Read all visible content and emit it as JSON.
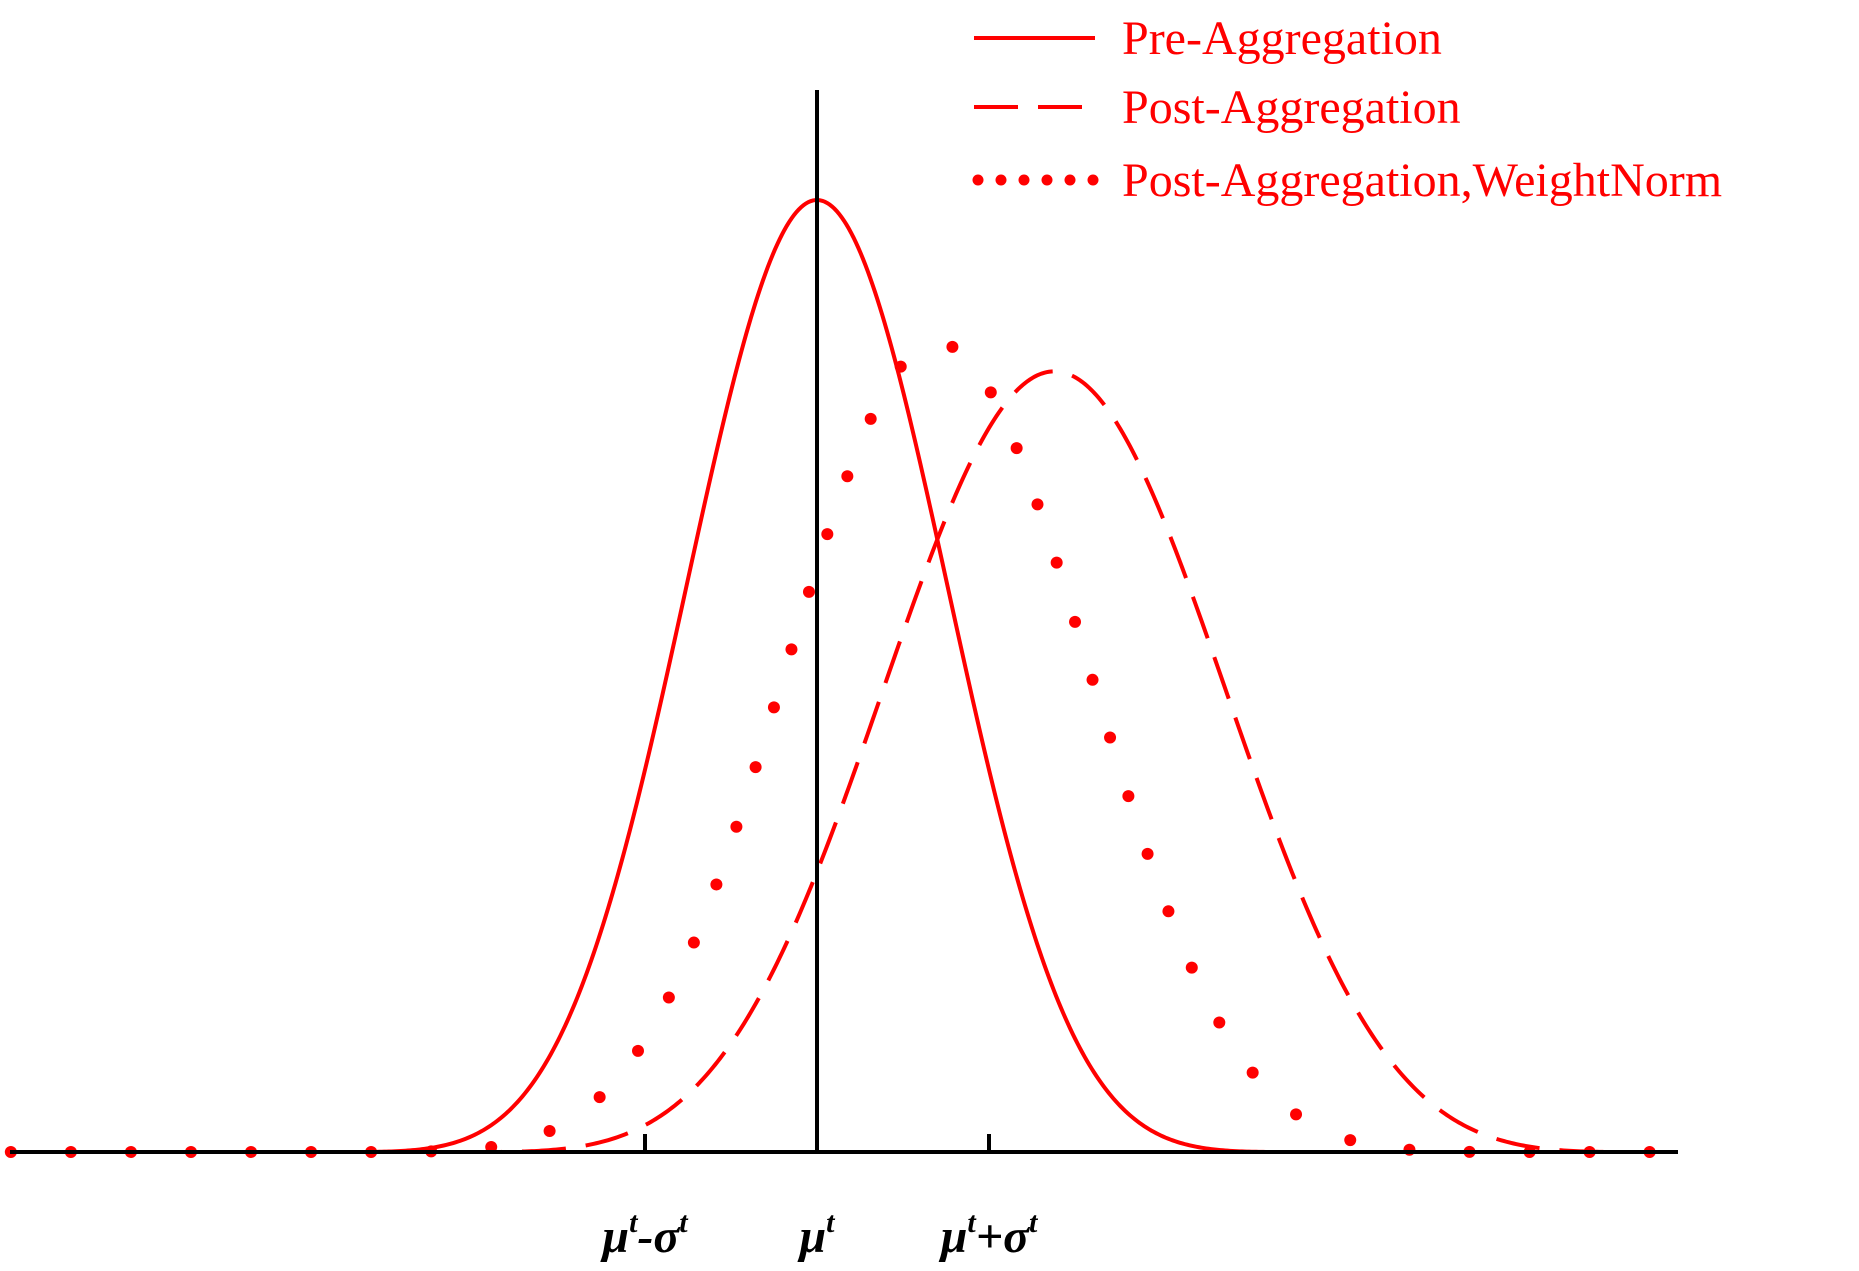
{
  "chart_data": {
    "type": "line",
    "title": "",
    "xlabel": "",
    "ylabel": "",
    "xlim": [
      -4.7,
      5.0
    ],
    "ylim": [
      0,
      1.0
    ],
    "grid": false,
    "legend_position": "top-right",
    "x_ticks": [
      {
        "value": -1,
        "label": "μ^t-σ^t",
        "base1": "μ",
        "sup1": "t",
        "op": "-",
        "base2": "σ",
        "sup2": "t"
      },
      {
        "value": 0,
        "label": "μ^t",
        "base1": "μ",
        "sup1": "t",
        "op": "",
        "base2": "",
        "sup2": ""
      },
      {
        "value": 1,
        "label": "μ^t+σ^t",
        "base1": "μ",
        "sup1": "t",
        "op": "+",
        "base2": "σ",
        "sup2": "t"
      }
    ],
    "vertical_line_x": 0,
    "series": [
      {
        "name": "Pre-Aggregation",
        "style": "solid",
        "color": "#ff0000",
        "mean": 0.0,
        "sd": 0.9,
        "half_width": 2.7,
        "peak": 1.0
      },
      {
        "name": "Post-Aggregation",
        "style": "dashed",
        "color": "#ff0000",
        "mean": 1.38,
        "sd": 1.22,
        "half_width": 3.3,
        "peak": 0.82
      },
      {
        "name": "Post-Aggregation,WeightNorm",
        "style": "dotted",
        "color": "#ff0000",
        "mean": 0.7,
        "sd": 1.03,
        "half_width": 3.3,
        "peak": 0.85
      }
    ]
  }
}
